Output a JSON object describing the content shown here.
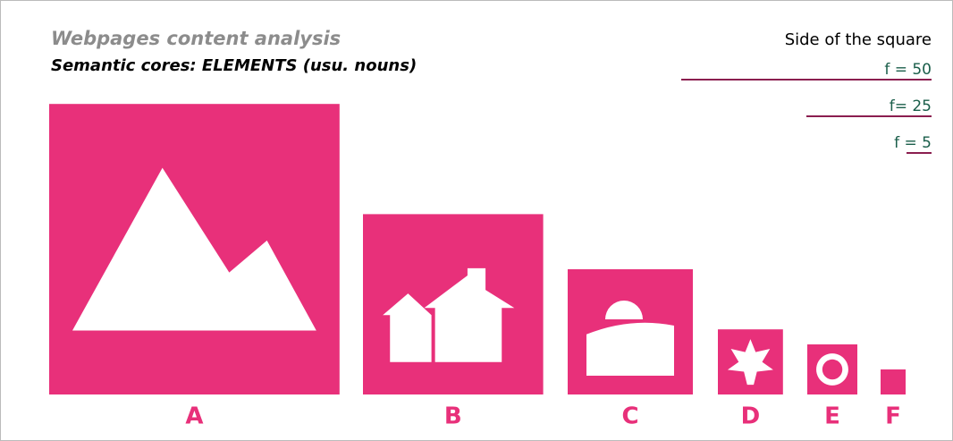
{
  "chart_data": {
    "type": "square",
    "title": "Webpages content analysis",
    "subtitle": "Semantic cores: ELEMENTS (usu. nouns)",
    "categories": [
      "A",
      "B",
      "C",
      "D",
      "E",
      "F"
    ],
    "values": [
      58,
      36,
      25,
      13,
      10,
      5
    ],
    "color": "#e8307a",
    "legend": {
      "title": "Side of the square",
      "items": [
        {
          "label": "f = 50",
          "value": 50
        },
        {
          "label": "f= 25",
          "value": 25
        },
        {
          "label": "f = 5",
          "value": 5
        }
      ],
      "color": "#8b1e4f"
    }
  }
}
